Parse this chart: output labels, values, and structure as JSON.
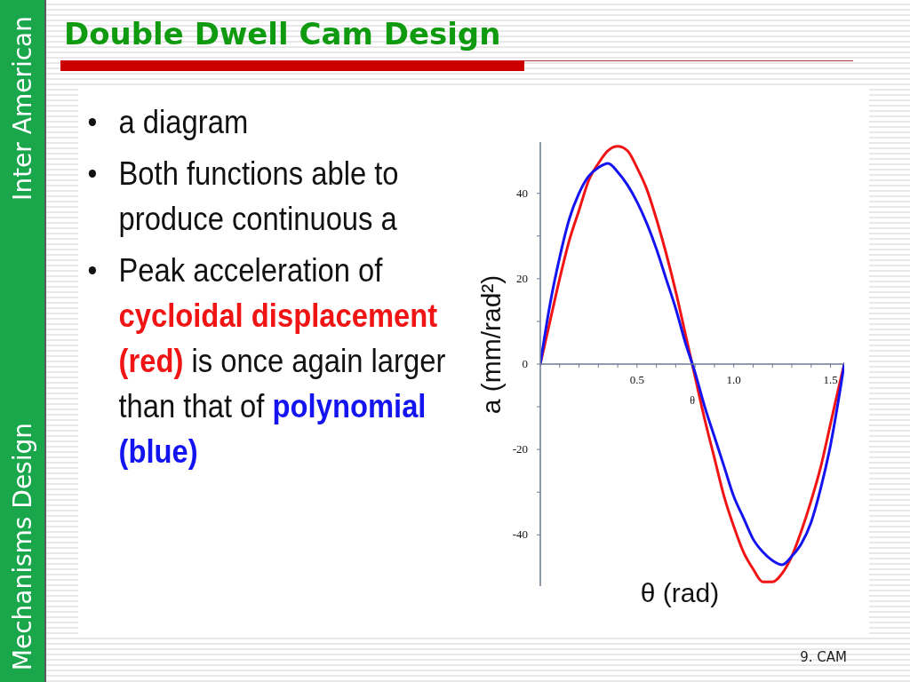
{
  "chart_data": {
    "type": "line",
    "title": "Double Dwell Cam Design",
    "xlabel": "θ (rad)",
    "ylabel": "a (mm/rad²)",
    "annotations": [
      "Inter American",
      "Mechanisms Design",
      "a diagram",
      "Both functions able to produce continuous a",
      "Peak acceleration of",
      "cycloidal displacement",
      "(red)",
      "is once again larger",
      "than that of",
      "polynomial",
      "(blue)",
      "θ",
      "9. CAM"
    ],
    "x": [
      0,
      0.05,
      0.1,
      0.15,
      0.2,
      0.25,
      0.3,
      0.35,
      0.4,
      0.45,
      0.5,
      0.55,
      0.6,
      0.65,
      0.7,
      0.75,
      0.8,
      0.85,
      0.9,
      0.95,
      1,
      1.05,
      1.1,
      1.15,
      1.2,
      1.25,
      1.3,
      1.35,
      1.4,
      1.45,
      1.5,
      1.55,
      1.571
    ],
    "series": [
      {
        "color": "#f01414",
        "values": [
          0,
          10,
          20,
          29,
          36,
          43,
          47,
          50,
          51,
          50,
          46,
          41,
          34,
          26,
          17,
          7,
          -3,
          -13,
          -22,
          -31,
          -38,
          -44,
          -48,
          -51,
          -51,
          -49,
          -45,
          -39,
          -32,
          -24,
          -14,
          -4,
          0
        ]
      },
      {
        "color": "#1414f0",
        "values": [
          0,
          14,
          25,
          34,
          40,
          44,
          46,
          47,
          45,
          42,
          38,
          33,
          27,
          20,
          13,
          5,
          -2,
          -10,
          -17,
          -24,
          -31,
          -36,
          -41,
          -44,
          -46,
          -47,
          -45,
          -42,
          -37,
          -29,
          -19,
          -6,
          0
        ]
      }
    ],
    "xlim": [
      0,
      1.571
    ],
    "ylim": [
      -52,
      52
    ],
    "xticks": [
      {
        "value": 0.1,
        "label": null
      },
      {
        "value": 0.2,
        "label": null
      },
      {
        "value": 0.3,
        "label": null
      },
      {
        "value": 0.4,
        "label": null
      },
      0.5,
      {
        "value": 0.6,
        "label": null
      },
      {
        "value": 0.7,
        "label": null
      },
      {
        "value": 0.8,
        "label": null
      },
      {
        "value": 0.9,
        "label": null
      },
      {
        "value": 1,
        "label": "1.0"
      },
      {
        "value": 1.1,
        "label": null
      },
      {
        "value": 1.2,
        "label": null
      },
      {
        "value": 1.3,
        "label": null
      },
      {
        "value": 1.4,
        "label": null
      },
      1.5
    ],
    "yticks": [
      -40,
      {
        "value": -30,
        "label": null
      },
      -20,
      {
        "value": -10,
        "label": null
      },
      0,
      {
        "value": 10,
        "label": null
      },
      20,
      {
        "value": 30,
        "label": null
      },
      40
    ],
    "marker": "none"
  }
}
